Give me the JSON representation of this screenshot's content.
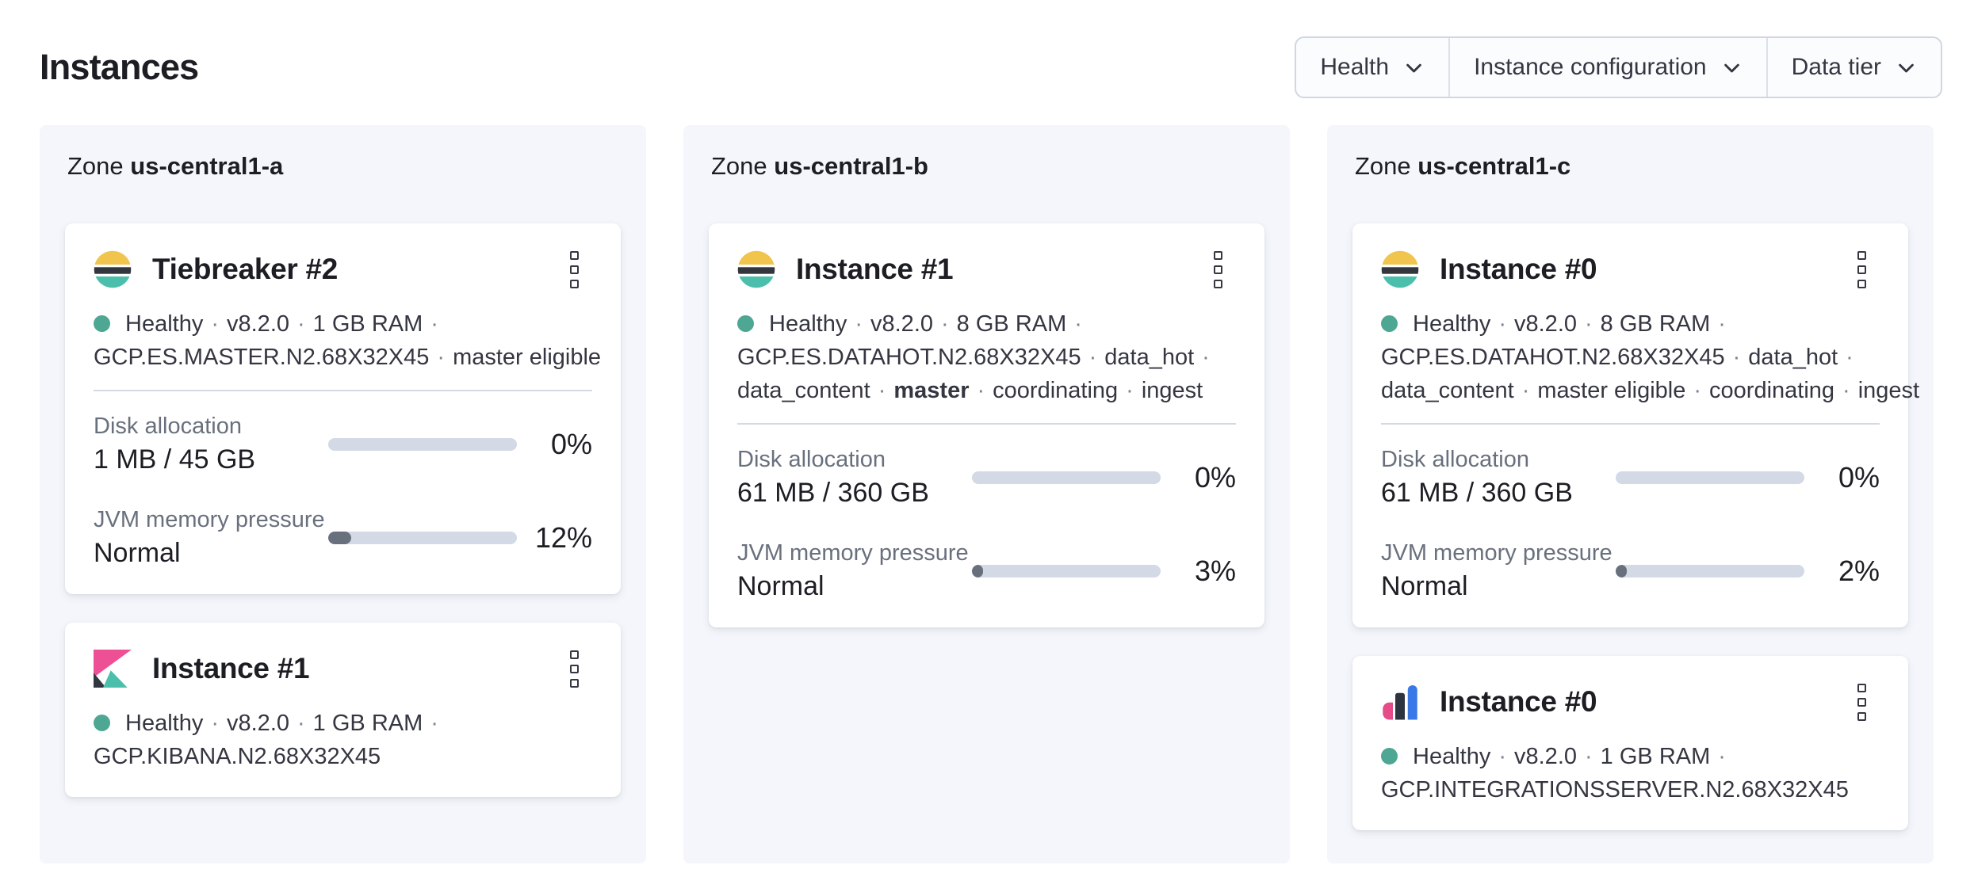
{
  "page": {
    "title": "Instances"
  },
  "filters": [
    {
      "label": "Health"
    },
    {
      "label": "Instance configuration"
    },
    {
      "label": "Data tier"
    }
  ],
  "zone_prefix": "Zone",
  "colors": {
    "text": "#343741",
    "text_strong": "#1c1e24",
    "text_subdued": "#69707d",
    "panel_bg": "#f4f6fb",
    "success": "#4ea793",
    "track": "#d3dae6",
    "bar_fill": "#69707d",
    "rule": "#d3dae6",
    "filter_bg": "#fbfcfe",
    "filter_border": "#d0d7e2",
    "filter_divider": "#dbe0ea",
    "es_yellow": "#f1c44e",
    "es_dark": "#33353f",
    "es_teal": "#4cbfac",
    "kb_pink": "#ee5096",
    "kb_dark": "#33353f",
    "kb_teal": "#4cbfac",
    "int_pink": "#e54a89",
    "int_dark": "#2e3340",
    "int_blue": "#3b78e7"
  },
  "zones": [
    {
      "name": "us-central1-a",
      "cards": [
        {
          "logo": "elasticsearch",
          "title": "Tiebreaker #2",
          "status_lines": [
            [
              "Healthy",
              "·",
              "v8.2.0",
              "·",
              "1 GB RAM",
              "·"
            ],
            [
              "GCP.ES.MASTER.N2.68X32X45",
              "·",
              "master eligible"
            ]
          ],
          "metrics": [
            {
              "label": "Disk allocation",
              "value": "1 MB / 45 GB",
              "percent": 0,
              "percent_label": "0%"
            },
            {
              "label": "JVM memory pressure",
              "value": "Normal",
              "percent": 12,
              "percent_label": "12%"
            }
          ]
        },
        {
          "logo": "kibana",
          "title": "Instance #1",
          "status_lines": [
            [
              "Healthy",
              "·",
              "v8.2.0",
              "·",
              "1 GB RAM",
              "·"
            ],
            [
              "GCP.KIBANA.N2.68X32X45"
            ]
          ],
          "metrics": []
        }
      ]
    },
    {
      "name": "us-central1-b",
      "cards": [
        {
          "logo": "elasticsearch",
          "title": "Instance #1",
          "status_lines": [
            [
              "Healthy",
              "·",
              "v8.2.0",
              "·",
              "8 GB RAM",
              "·"
            ],
            [
              "GCP.ES.DATAHOT.N2.68X32X45",
              "·",
              "data_hot",
              "·"
            ],
            [
              "data_content",
              "·",
              "**master**",
              "·",
              "coordinating",
              "·",
              "ingest"
            ]
          ],
          "metrics": [
            {
              "label": "Disk allocation",
              "value": "61 MB / 360 GB",
              "percent": 0,
              "percent_label": "0%"
            },
            {
              "label": "JVM memory pressure",
              "value": "Normal",
              "percent": 3,
              "percent_label": "3%"
            }
          ]
        }
      ]
    },
    {
      "name": "us-central1-c",
      "cards": [
        {
          "logo": "elasticsearch",
          "title": "Instance #0",
          "status_lines": [
            [
              "Healthy",
              "·",
              "v8.2.0",
              "·",
              "8 GB RAM",
              "·"
            ],
            [
              "GCP.ES.DATAHOT.N2.68X32X45",
              "·",
              "data_hot",
              "·"
            ],
            [
              "data_content",
              "·",
              "master eligible",
              "·",
              "coordinating",
              "·",
              "ingest"
            ]
          ],
          "metrics": [
            {
              "label": "Disk allocation",
              "value": "61 MB / 360 GB",
              "percent": 0,
              "percent_label": "0%"
            },
            {
              "label": "JVM memory pressure",
              "value": "Normal",
              "percent": 2,
              "percent_label": "2%"
            }
          ]
        },
        {
          "logo": "integrations-server",
          "title": "Instance #0",
          "status_lines": [
            [
              "Healthy",
              "·",
              "v8.2.0",
              "·",
              "1 GB RAM",
              "·"
            ],
            [
              "GCP.INTEGRATIONSSERVER.N2.68X32X45"
            ]
          ],
          "metrics": []
        }
      ]
    }
  ]
}
